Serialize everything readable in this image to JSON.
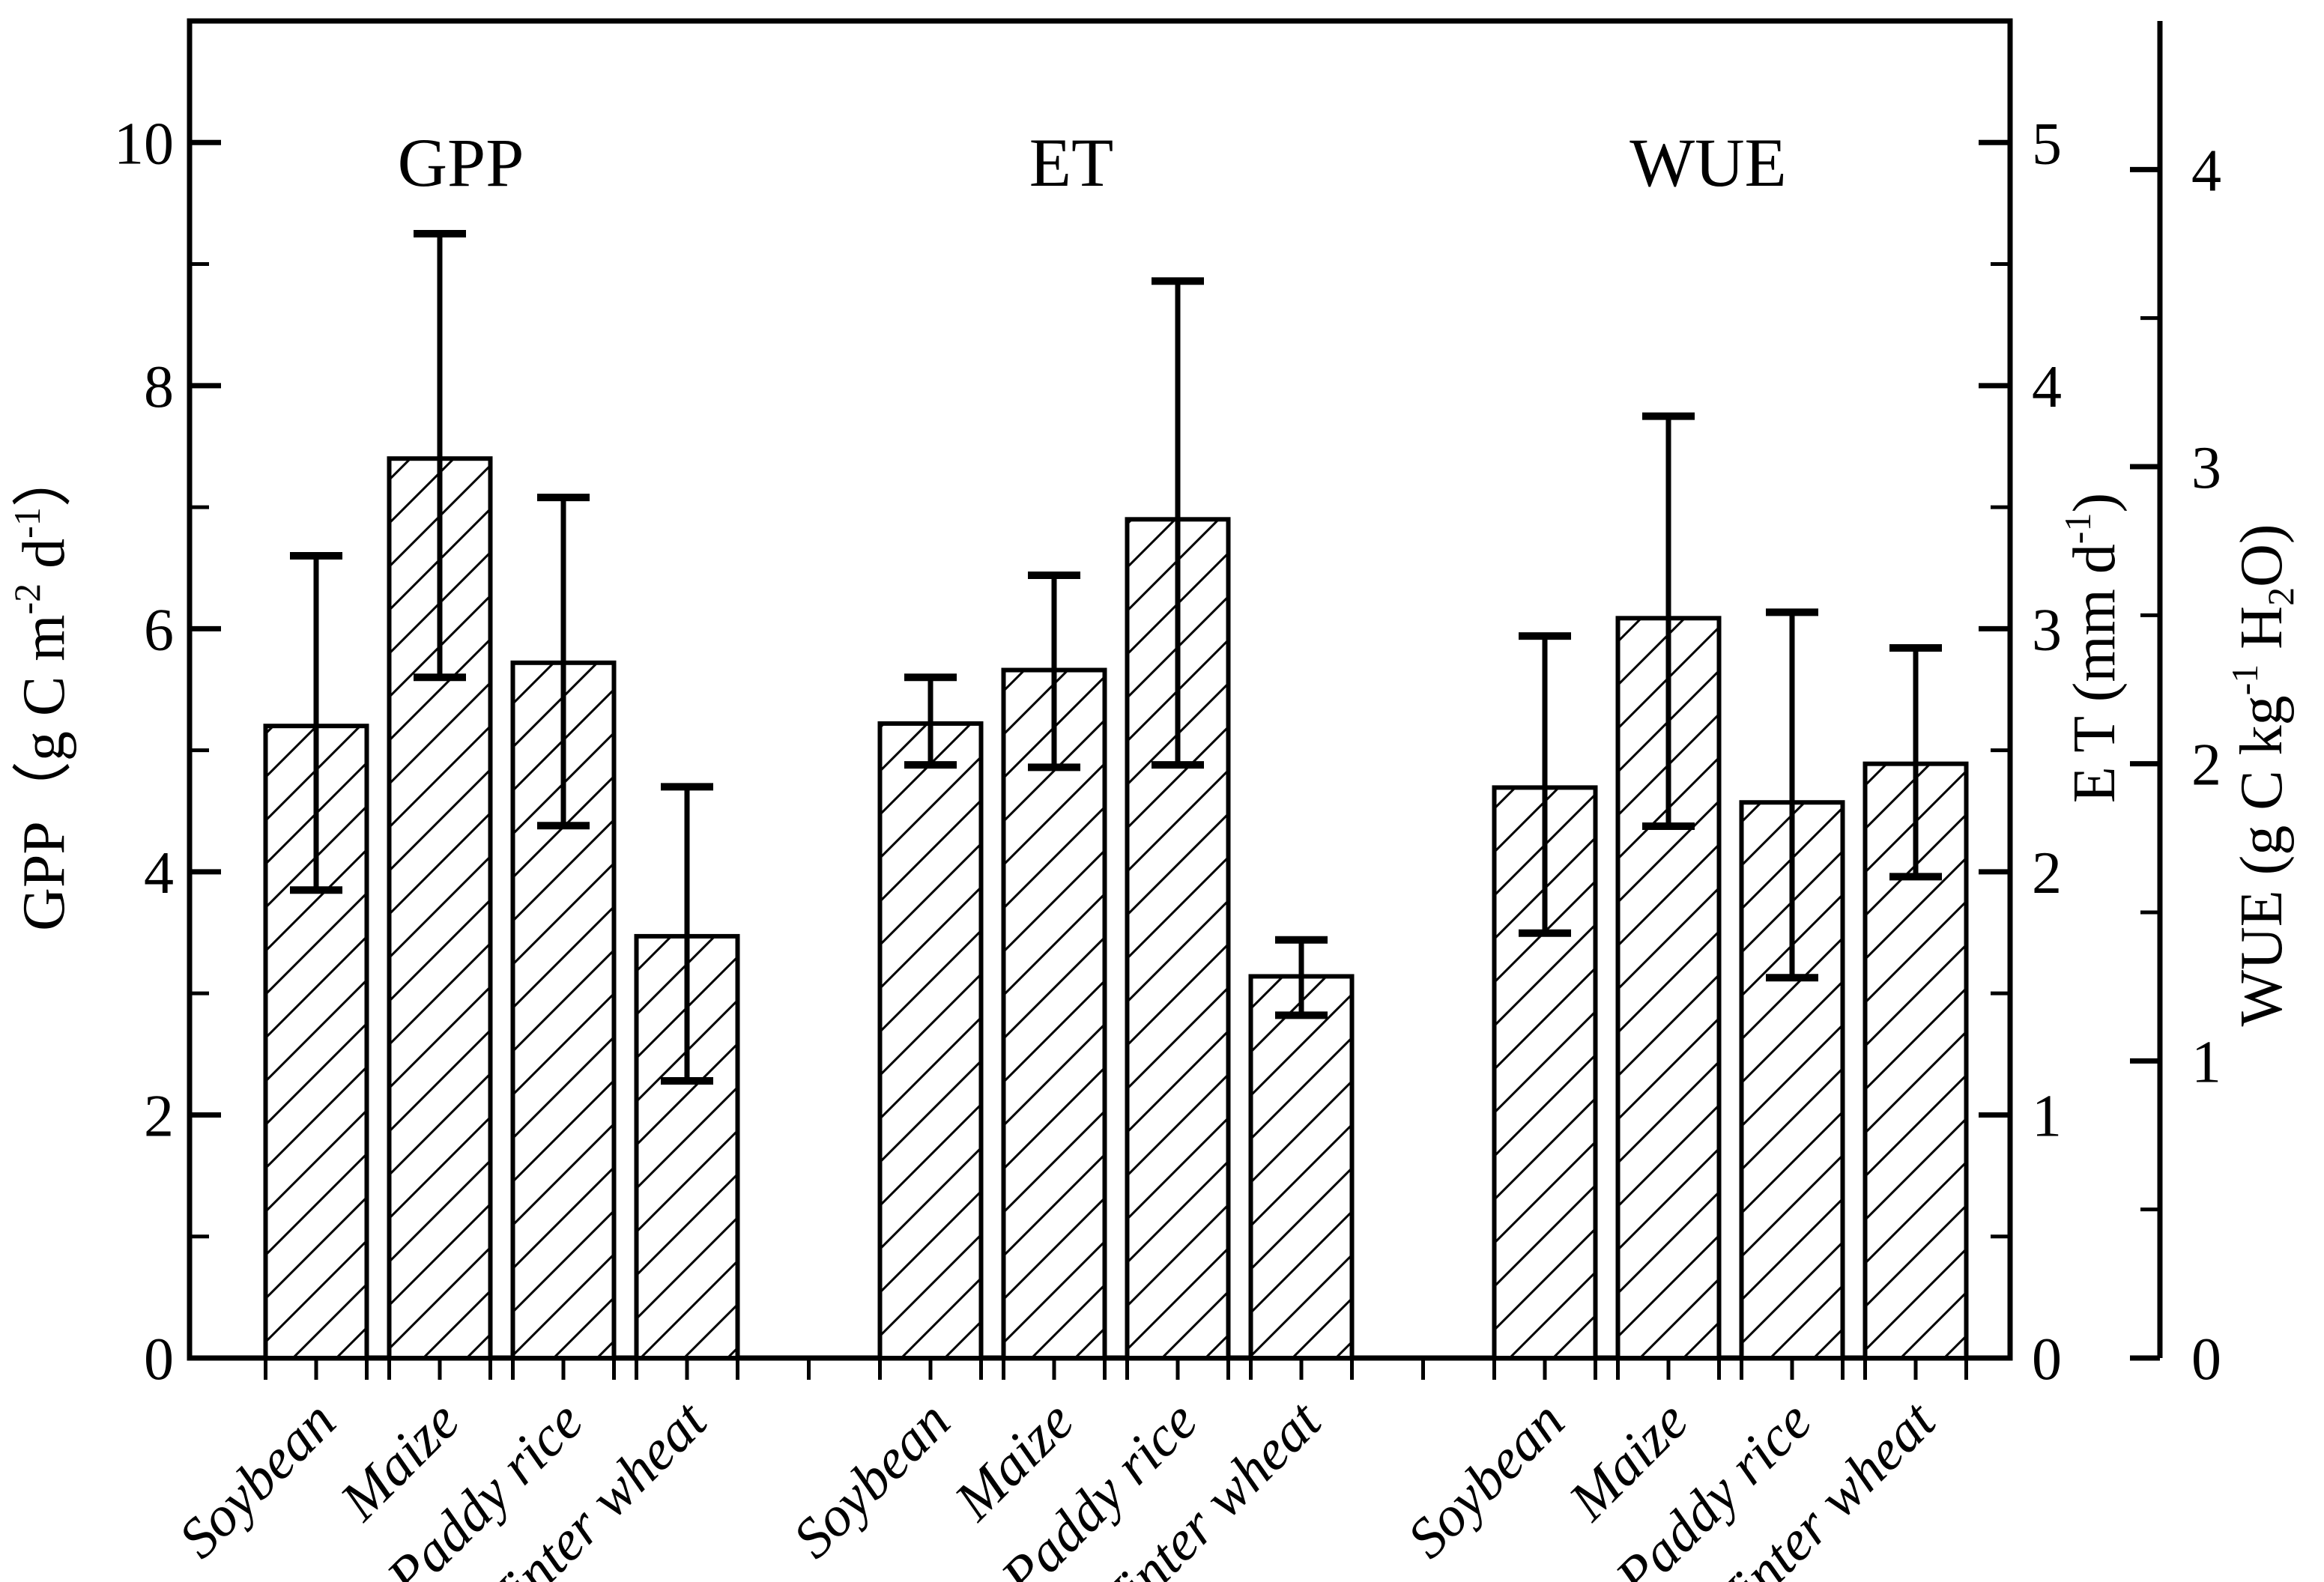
{
  "colors": {
    "foreground": "#000000",
    "background": "#ffffff"
  },
  "chart_data": {
    "type": "bar",
    "title": "",
    "categories": [
      "Soybean",
      "Maize",
      "Paddy rice",
      "Winter wheat"
    ],
    "category_style": "italic",
    "grid": "off",
    "bar_fill": "diagonal-hatch",
    "groups": [
      {
        "name": "GPP",
        "axis": "left",
        "values": [
          5.2,
          7.4,
          5.72,
          3.47
        ],
        "err_lo": [
          3.85,
          5.6,
          4.38,
          2.28
        ],
        "err_hi": [
          6.6,
          9.25,
          7.08,
          4.7
        ]
      },
      {
        "name": "ET",
        "axis": "et",
        "values": [
          2.61,
          2.83,
          3.45,
          1.57
        ],
        "err_lo": [
          2.44,
          2.43,
          2.44,
          1.41
        ],
        "err_hi": [
          2.8,
          3.22,
          4.43,
          1.72
        ]
      },
      {
        "name": "WUE",
        "axis": "wue",
        "values": [
          1.92,
          2.49,
          1.87,
          2.0
        ],
        "err_lo": [
          1.43,
          1.79,
          1.28,
          1.62
        ],
        "err_hi": [
          2.43,
          3.17,
          2.51,
          2.39
        ]
      }
    ],
    "axes": {
      "left": {
        "label": "GPP（g C m-2 d-1）",
        "label_parts": [
          {
            "t": "GPP（g C m"
          },
          {
            "t": "-2",
            "s": "sup"
          },
          {
            "t": " d"
          },
          {
            "t": "-1",
            "s": "sup"
          },
          {
            "t": "）"
          }
        ],
        "range": [
          0,
          11
        ],
        "major_ticks": [
          0,
          2,
          4,
          6,
          8,
          10
        ],
        "minor_ticks": [
          1,
          3,
          5,
          7,
          9
        ]
      },
      "et": {
        "label": "E T (mm d-1)",
        "label_parts": [
          {
            "t": "E T (mm d"
          },
          {
            "t": "-1",
            "s": "sup"
          },
          {
            "t": ")"
          }
        ],
        "range": [
          0,
          5.5
        ],
        "major_ticks": [
          0,
          1,
          2,
          3,
          4,
          5
        ],
        "minor_ticks": [
          0.5,
          1.5,
          2.5,
          3.5,
          4.5
        ]
      },
      "wue": {
        "label": "WUE (g C kg-1 H2O)",
        "label_parts": [
          {
            "t": "WUE (g C kg"
          },
          {
            "t": "-1",
            "s": "sup"
          },
          {
            "t": " H"
          },
          {
            "t": "2",
            "s": "sub"
          },
          {
            "t": "O)"
          }
        ],
        "range": [
          0,
          4.5
        ],
        "major_ticks": [
          0,
          1,
          2,
          3,
          4
        ],
        "minor_ticks": [
          0.5,
          1.5,
          2.5,
          3.5
        ]
      }
    }
  }
}
